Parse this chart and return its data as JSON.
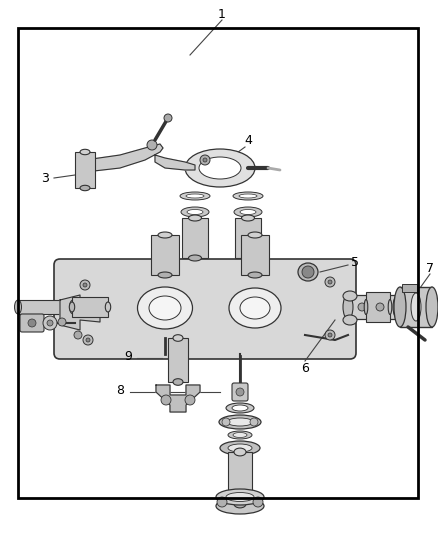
{
  "bg_color": "#ffffff",
  "border_color": "#000000",
  "lc": "#444444",
  "po": "#333333",
  "pc": "#aaaaaa",
  "figsize": [
    4.38,
    5.33
  ],
  "dpi": 100
}
